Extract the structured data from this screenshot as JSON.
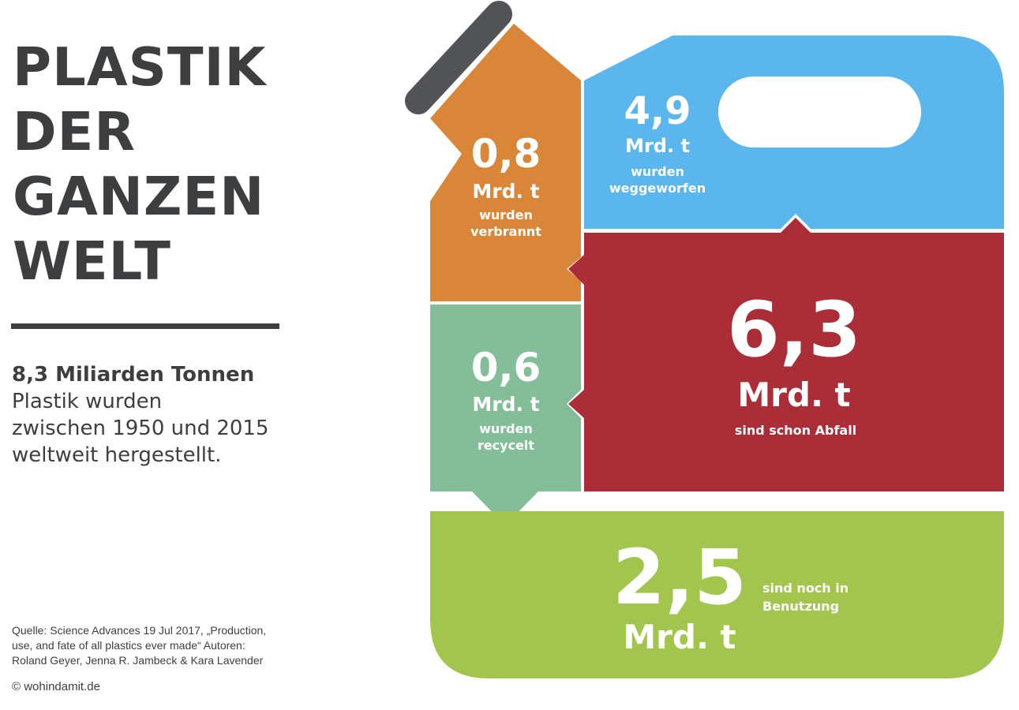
{
  "title": {
    "line1": "PLASTIK",
    "line2": "DER",
    "line3": "GANZEN",
    "line4": "WELT"
  },
  "summary": {
    "bold": "8,3 Miliarden Tonnen",
    "line1": "Plastik wurden",
    "line2": "zwischen 1950 und 2015",
    "line3": "weltweit hergestellt."
  },
  "source": {
    "line1": "Quelle: Science Advances  19 Jul 2017, „Production,",
    "line2": "use, and fate of all plastics ever made“ Autoren:",
    "line3": "Roland Geyer, Jenna R. Jambeck & Kara Lavender"
  },
  "copyright": "© wohindamit.de",
  "segments": {
    "verbrannt": {
      "value": "0,8",
      "unit": "Mrd. t",
      "label1": "wurden",
      "label2": "verbrannt",
      "color": "#d98638"
    },
    "weggeworfen": {
      "value": "4,9",
      "unit": "Mrd. t",
      "label1": "wurden",
      "label2": "weggeworfen",
      "color": "#5bb6ee"
    },
    "recycelt": {
      "value": "0,6",
      "unit": "Mrd. t",
      "label1": "wurden",
      "label2": "recycelt",
      "color": "#84be99"
    },
    "abfall": {
      "value": "6,3",
      "unit": "Mrd. t",
      "label1": "sind schon Abfall",
      "color": "#ab2d37"
    },
    "benutzung": {
      "value": "2,5",
      "unit": "Mrd. t",
      "label1": "sind noch in",
      "label2": "Benutzung",
      "color": "#a2c54d"
    }
  },
  "colors": {
    "text": "#3d3e40",
    "handle": "#525356"
  }
}
